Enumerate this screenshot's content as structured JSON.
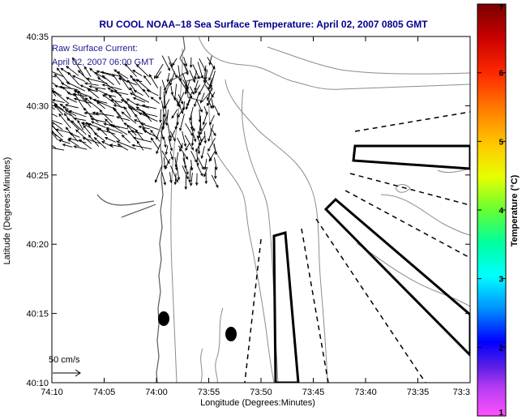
{
  "title": "RU COOL  NOAA–18  Sea Surface Temperature:  April 02, 2007 0805 GMT",
  "inset": {
    "line1": "Raw Surface Current:",
    "line2": "April 02, 2007 06:00 GMT"
  },
  "axes": {
    "xlabel": "Longitude (Degrees:Minutes)",
    "ylabel": "Latitude (Degrees:Minutes)",
    "xticks": [
      "74:10",
      "74:05",
      "74:00",
      "73:55",
      "73:50",
      "73:45",
      "73:40",
      "73:35",
      "73:3"
    ],
    "yticks": [
      "40:35",
      "40:30",
      "40:25",
      "40:20",
      "40:15",
      "40:10"
    ]
  },
  "scale": {
    "label": "50 cm/s"
  },
  "colorbar": {
    "label": "Temperature (°C)",
    "ticks": [
      "7",
      "6",
      "5",
      "4",
      "3",
      "2",
      "1"
    ]
  },
  "colors": {
    "title": "#00008b",
    "inset_text": "#1a1a8c"
  }
}
